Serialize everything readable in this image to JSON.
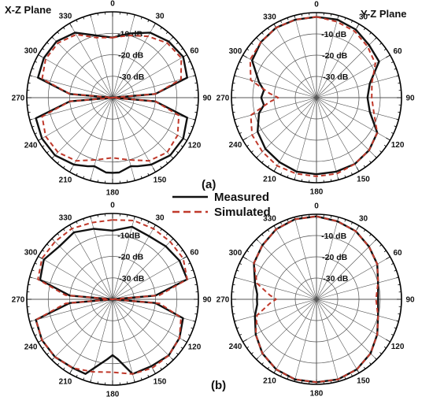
{
  "figure": {
    "plane_titles": {
      "xz": "X-Z Plane",
      "yz": "Y-Z Plane"
    },
    "panel_labels": {
      "a": "(a)",
      "b": "(b)"
    },
    "legend": {
      "measured": "Measured",
      "simulated": "Simulated"
    },
    "colors": {
      "measured": "#111111",
      "simulated": "#c0392b",
      "grid": "#555555"
    }
  },
  "chart_data": [
    {
      "type": "polar",
      "panel": "a",
      "plane": "X-Z Plane",
      "angle_ticks": [
        0,
        30,
        60,
        90,
        120,
        150,
        180,
        210,
        240,
        270,
        300,
        330
      ],
      "angle_tick_labels": [
        "0",
        "30",
        "60",
        "90",
        "120",
        "150",
        "180",
        "210",
        "240",
        "270",
        "300",
        "330"
      ],
      "radial_ticks": [
        -10,
        -20,
        -30
      ],
      "radial_tick_labels": [
        "-10 dB",
        "-20 dB",
        "-30 dB"
      ],
      "r_range_db": [
        -40,
        0
      ],
      "series": [
        {
          "name": "Measured",
          "style": "solid",
          "theta": [
            0,
            15,
            30,
            45,
            60,
            75,
            85,
            90,
            95,
            105,
            120,
            135,
            150,
            160,
            165,
            175,
            180,
            185,
            195,
            200,
            210,
            225,
            240,
            255,
            265,
            270,
            275,
            285,
            300,
            315,
            330,
            345
          ],
          "r_db": [
            -12,
            -9,
            -5,
            -3,
            -2,
            -4,
            -20,
            -40,
            -20,
            -4,
            -2,
            -2,
            -4,
            -6,
            -7,
            -5,
            -5,
            -5,
            -7,
            -6,
            -4,
            -2,
            -2,
            -3,
            -20,
            -40,
            -20,
            -4,
            -3,
            -3,
            -5,
            -10
          ]
        },
        {
          "name": "Simulated",
          "style": "dashed",
          "theta": [
            0,
            15,
            30,
            45,
            60,
            75,
            85,
            90,
            95,
            105,
            120,
            135,
            150,
            165,
            180,
            195,
            210,
            225,
            240,
            255,
            265,
            270,
            275,
            285,
            300,
            315,
            330,
            345
          ],
          "r_db": [
            -12,
            -10,
            -7,
            -4,
            -3,
            -7,
            -20,
            -40,
            -20,
            -8,
            -5,
            -4,
            -6,
            -10,
            -12,
            -10,
            -6,
            -4,
            -4,
            -6,
            -20,
            -40,
            -20,
            -6,
            -4,
            -4,
            -6,
            -11
          ]
        }
      ]
    },
    {
      "type": "polar",
      "panel": "a",
      "plane": "Y-Z Plane",
      "angle_ticks": [
        0,
        30,
        60,
        90,
        120,
        150,
        180,
        210,
        240,
        270,
        300,
        330
      ],
      "angle_tick_labels": [
        "0",
        "30",
        "60",
        "90",
        "120",
        "150",
        "180",
        "210",
        "240",
        "270",
        "300",
        "330"
      ],
      "radial_ticks": [
        -10,
        -20,
        -30
      ],
      "radial_tick_labels": [
        "-10 dB",
        "-20 dB",
        "-30 dB"
      ],
      "r_range_db": [
        -40,
        0
      ],
      "series": [
        {
          "name": "Measured",
          "style": "solid",
          "theta": [
            0,
            15,
            30,
            45,
            60,
            75,
            90,
            105,
            120,
            135,
            150,
            165,
            180,
            195,
            210,
            225,
            240,
            255,
            262,
            270,
            278,
            285,
            300,
            315,
            330,
            345
          ],
          "r_db": [
            -2,
            -2,
            -3,
            -5,
            -6,
            -14,
            -16,
            -14,
            -7,
            -5,
            -4,
            -4,
            -4,
            -4,
            -5,
            -6,
            -8,
            -12,
            -15,
            -14,
            -15,
            -12,
            -5,
            -3,
            -2,
            -2
          ]
        },
        {
          "name": "Simulated",
          "style": "dashed",
          "theta": [
            0,
            15,
            30,
            45,
            60,
            75,
            90,
            105,
            120,
            135,
            150,
            165,
            180,
            195,
            210,
            225,
            240,
            255,
            265,
            270,
            275,
            285,
            300,
            315,
            330,
            345
          ],
          "r_db": [
            -2,
            -3,
            -4,
            -6,
            -8,
            -13,
            -14,
            -12,
            -7,
            -5,
            -4,
            -3,
            -3,
            -3,
            -3,
            -4,
            -5,
            -8,
            -18,
            -22,
            -18,
            -8,
            -4,
            -3,
            -2,
            -2
          ]
        }
      ]
    },
    {
      "type": "polar",
      "panel": "b",
      "plane": "X-Z Plane",
      "angle_ticks": [
        0,
        30,
        60,
        90,
        120,
        150,
        180,
        210,
        240,
        270,
        300,
        330
      ],
      "angle_tick_labels": [
        "0",
        "30",
        "60",
        "90",
        "120",
        "150",
        "180",
        "210",
        "240",
        "270",
        "300",
        "330"
      ],
      "radial_ticks": [
        -10,
        -20,
        -30
      ],
      "radial_tick_labels": [
        "-10dB",
        "-20 dB",
        "-30 dB"
      ],
      "r_range_db": [
        -40,
        0
      ],
      "series": [
        {
          "name": "Measured",
          "style": "solid",
          "theta": [
            0,
            15,
            30,
            45,
            60,
            75,
            85,
            90,
            95,
            105,
            120,
            135,
            150,
            165,
            175,
            180,
            185,
            200,
            210,
            225,
            240,
            255,
            265,
            270,
            275,
            285,
            300,
            315,
            330,
            345
          ],
          "r_db": [
            -8,
            -5,
            -6,
            -5,
            -4,
            -4,
            -20,
            -40,
            -20,
            -6,
            -4,
            -3,
            -4,
            -4,
            -12,
            -14,
            -12,
            -3,
            -3,
            -2,
            -2,
            -3,
            -20,
            -40,
            -20,
            -5,
            -3,
            -5,
            -4,
            -6
          ]
        },
        {
          "name": "Simulated",
          "style": "dashed",
          "theta": [
            0,
            15,
            30,
            45,
            60,
            75,
            85,
            90,
            95,
            105,
            120,
            135,
            150,
            165,
            180,
            195,
            210,
            225,
            240,
            255,
            265,
            270,
            275,
            285,
            300,
            315,
            330,
            345
          ],
          "r_db": [
            -3,
            -2,
            -2,
            -2,
            -2,
            -4,
            -18,
            -40,
            -18,
            -7,
            -4,
            -3,
            -3,
            -4,
            -6,
            -5,
            -3,
            -2,
            -2,
            -3,
            -18,
            -40,
            -18,
            -4,
            -2,
            -2,
            -2,
            -3
          ]
        }
      ]
    },
    {
      "type": "polar",
      "panel": "b",
      "plane": "Y-Z Plane",
      "angle_ticks": [
        0,
        30,
        60,
        90,
        120,
        150,
        180,
        210,
        240,
        270,
        300,
        330
      ],
      "angle_tick_labels": [
        "0",
        "30",
        "60",
        "90",
        "120",
        "150",
        "180",
        "210",
        "240",
        "270",
        "300",
        "330"
      ],
      "radial_ticks": [
        -10,
        -20,
        -30
      ],
      "radial_tick_labels": [
        "-10 dB",
        "-20 dB",
        "-30 dB"
      ],
      "r_range_db": [
        -40,
        0
      ],
      "series": [
        {
          "name": "Measured",
          "style": "solid",
          "theta": [
            0,
            15,
            30,
            45,
            60,
            75,
            90,
            105,
            120,
            135,
            150,
            165,
            180,
            195,
            210,
            225,
            240,
            255,
            265,
            270,
            275,
            285,
            300,
            315,
            330,
            345
          ],
          "r_db": [
            -1,
            -2,
            -3,
            -5,
            -7,
            -10,
            -11,
            -10,
            -7,
            -4,
            -2,
            -1,
            -1,
            -1,
            -2,
            -4,
            -7,
            -10,
            -12,
            -12,
            -12,
            -10,
            -6,
            -4,
            -2,
            -1
          ]
        },
        {
          "name": "Simulated",
          "style": "dashed",
          "theta": [
            0,
            15,
            30,
            45,
            60,
            75,
            90,
            105,
            120,
            135,
            150,
            165,
            180,
            195,
            210,
            225,
            240,
            255,
            265,
            270,
            275,
            285,
            300,
            315,
            330,
            345
          ],
          "r_db": [
            -1,
            -2,
            -3,
            -5,
            -7,
            -10,
            -12,
            -10,
            -7,
            -4,
            -2,
            -1,
            -1,
            -1,
            -2,
            -4,
            -7,
            -11,
            -18,
            -21,
            -18,
            -11,
            -6,
            -4,
            -2,
            -1
          ]
        }
      ]
    }
  ]
}
